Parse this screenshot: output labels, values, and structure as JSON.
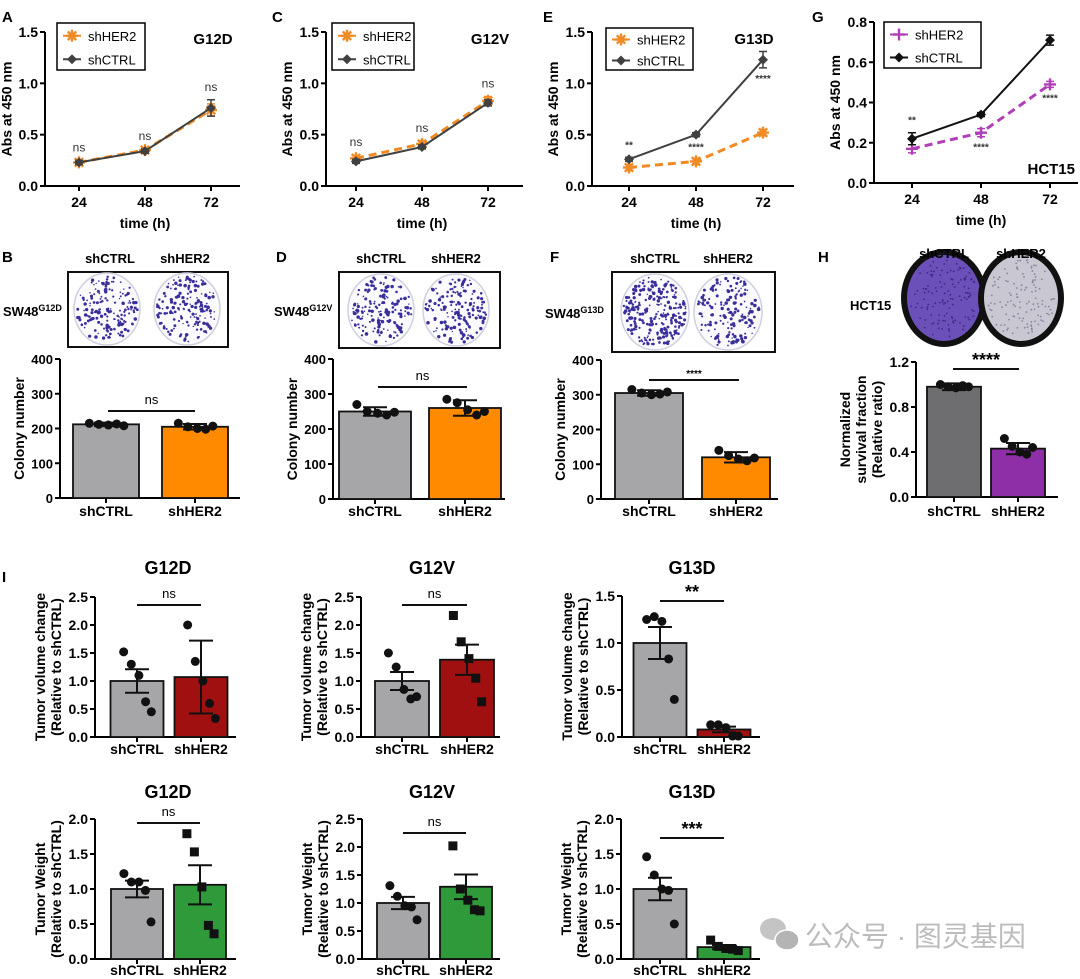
{
  "panel_letters": {
    "A": "A",
    "B": "B",
    "C": "C",
    "D": "D",
    "E": "E",
    "F": "F",
    "G": "G",
    "H": "H",
    "I": "I"
  },
  "chart_data": [
    {
      "id": "A",
      "type": "line",
      "title": "G12D",
      "xlabel": "time (h)",
      "ylabel": "Abs at 450 nm",
      "x": [
        24,
        48,
        72
      ],
      "xtick_labels": [
        "24",
        "48",
        "72"
      ],
      "ylim": [
        0,
        1.5
      ],
      "yticks": [
        0,
        0.5,
        1.0,
        1.5
      ],
      "ytick_labels": [
        "0.0",
        "0.5",
        "1.0",
        "1.5"
      ],
      "series": [
        {
          "name": "shHER2",
          "values": [
            0.23,
            0.35,
            0.74
          ],
          "errors": [
            0.02,
            0.02,
            0.06
          ],
          "color": "#f08a24",
          "dashed": true,
          "marker": "star"
        },
        {
          "name": "shCTRL",
          "values": [
            0.23,
            0.34,
            0.76
          ],
          "errors": [
            0.02,
            0.02,
            0.08
          ],
          "color": "#404040",
          "dashed": false,
          "marker": "diamond"
        }
      ],
      "annotations": [
        "ns",
        "ns",
        "ns"
      ],
      "legend": "top-left"
    },
    {
      "id": "C",
      "type": "line",
      "title": "G12V",
      "xlabel": "time (h)",
      "ylabel": "Abs at 450 nm",
      "x": [
        24,
        48,
        72
      ],
      "xtick_labels": [
        "24",
        "48",
        "72"
      ],
      "ylim": [
        0,
        1.5
      ],
      "yticks": [
        0,
        0.5,
        1.0,
        1.5
      ],
      "ytick_labels": [
        "0.0",
        "0.5",
        "1.0",
        "1.5"
      ],
      "series": [
        {
          "name": "shHER2",
          "values": [
            0.27,
            0.41,
            0.83
          ],
          "errors": [
            0.03,
            0.03,
            0.04
          ],
          "color": "#f08a24",
          "dashed": true,
          "marker": "star"
        },
        {
          "name": "shCTRL",
          "values": [
            0.24,
            0.38,
            0.81
          ],
          "errors": [
            0.02,
            0.02,
            0.03
          ],
          "color": "#404040",
          "dashed": false,
          "marker": "diamond"
        }
      ],
      "annotations": [
        "ns",
        "ns",
        "ns"
      ],
      "legend": "top-left"
    },
    {
      "id": "E",
      "type": "line",
      "title": "G13D",
      "xlabel": "time (h)",
      "ylabel": "Abs at 450 nm",
      "x": [
        24,
        48,
        72
      ],
      "xtick_labels": [
        "24",
        "48",
        "72"
      ],
      "ylim": [
        0,
        1.5
      ],
      "yticks": [
        0,
        0.5,
        1.0,
        1.5
      ],
      "ytick_labels": [
        "0.0",
        "0.5",
        "1.0",
        "1.5"
      ],
      "series": [
        {
          "name": "shHER2",
          "values": [
            0.18,
            0.24,
            0.52
          ],
          "errors": [
            0.03,
            0.03,
            0.03
          ],
          "color": "#f08a24",
          "dashed": true,
          "marker": "star"
        },
        {
          "name": "shCTRL",
          "values": [
            0.26,
            0.5,
            1.23
          ],
          "errors": [
            0.02,
            0.02,
            0.08
          ],
          "color": "#404040",
          "dashed": false,
          "marker": "diamond"
        }
      ],
      "annotations": [
        "**",
        "****",
        "****"
      ],
      "legend": "top-left"
    },
    {
      "id": "G",
      "type": "line",
      "title": "HCT15",
      "xlabel": "time (h)",
      "ylabel": "Abs at 450 nm",
      "x": [
        24,
        48,
        72
      ],
      "xtick_labels": [
        "24",
        "48",
        "72"
      ],
      "ylim": [
        0,
        0.8
      ],
      "yticks": [
        0,
        0.2,
        0.4,
        0.6,
        0.8
      ],
      "ytick_labels": [
        "0.0",
        "0.2",
        "0.4",
        "0.6",
        "0.8"
      ],
      "series": [
        {
          "name": "shHER2",
          "values": [
            0.17,
            0.25,
            0.49
          ],
          "errors": [
            0.02,
            0.02,
            0.015
          ],
          "color": "#b040b8",
          "dashed": true,
          "marker": "plus"
        },
        {
          "name": "shCTRL",
          "values": [
            0.22,
            0.34,
            0.71
          ],
          "errors": [
            0.03,
            0.01,
            0.025
          ],
          "color": "#111111",
          "dashed": false,
          "marker": "diamond"
        }
      ],
      "annotations": [
        "**",
        "****",
        "****"
      ],
      "legend": "top-left"
    },
    {
      "id": "B",
      "type": "bar",
      "title": "",
      "ylabel": [
        "Colony number"
      ],
      "categories": [
        "shCTRL",
        "shHER2"
      ],
      "ylim": [
        0,
        400
      ],
      "yticks": [
        0,
        100,
        200,
        300,
        400
      ],
      "ytick_labels": [
        "0",
        "100",
        "200",
        "300",
        "400"
      ],
      "values": [
        212,
        205
      ],
      "errors": [
        5,
        8
      ],
      "points": [
        [
          215,
          212,
          210,
          213,
          208
        ],
        [
          215,
          205,
          200,
          198,
          207
        ]
      ],
      "colors": [
        "#a6a6a8",
        "#ff8a00"
      ],
      "markers": [
        "circle",
        "circle"
      ],
      "significance": "ns"
    },
    {
      "id": "D",
      "type": "bar",
      "title": "",
      "ylabel": [
        "Colony number"
      ],
      "categories": [
        "shCTRL",
        "shHER2"
      ],
      "ylim": [
        0,
        400
      ],
      "yticks": [
        0,
        100,
        200,
        300,
        400
      ],
      "ytick_labels": [
        "0",
        "100",
        "200",
        "300",
        "400"
      ],
      "values": [
        250,
        260
      ],
      "errors": [
        12,
        22
      ],
      "points": [
        [
          270,
          250,
          245,
          240,
          248
        ],
        [
          285,
          275,
          255,
          240,
          250
        ]
      ],
      "colors": [
        "#a6a6a8",
        "#ff8a00"
      ],
      "markers": [
        "circle",
        "circle"
      ],
      "significance": "ns"
    },
    {
      "id": "F",
      "type": "bar",
      "title": "",
      "ylabel": [
        "Colony number"
      ],
      "categories": [
        "shCTRL",
        "shHER2"
      ],
      "ylim": [
        0,
        400
      ],
      "yticks": [
        0,
        100,
        200,
        300,
        400
      ],
      "ytick_labels": [
        "0",
        "100",
        "200",
        "300",
        "400"
      ],
      "values": [
        305,
        120
      ],
      "errors": [
        8,
        15
      ],
      "points": [
        [
          315,
          305,
          300,
          302,
          308
        ],
        [
          140,
          125,
          115,
          110,
          118
        ]
      ],
      "colors": [
        "#a6a6a8",
        "#ff8a00"
      ],
      "markers": [
        "circle",
        "circle"
      ],
      "significance": "****"
    },
    {
      "id": "H",
      "type": "bar",
      "title": "",
      "ylabel": [
        "Normalized",
        "survival fraction",
        "(Relative ratio)"
      ],
      "categories": [
        "shCTRL",
        "shHER2"
      ],
      "ylim": [
        0,
        1.2
      ],
      "yticks": [
        0,
        0.4,
        0.8,
        1.2
      ],
      "ytick_labels": [
        "0.0",
        "0.4",
        "0.8",
        "1.2"
      ],
      "values": [
        0.98,
        0.43
      ],
      "errors": [
        0.03,
        0.05
      ],
      "points": [
        [
          1.0,
          0.98,
          0.97,
          0.99,
          0.98
        ],
        [
          0.52,
          0.45,
          0.4,
          0.38,
          0.44
        ]
      ],
      "colors": [
        "#6e6e70",
        "#8e2fa8"
      ],
      "markers": [
        "circle",
        "circle"
      ],
      "significance": "****"
    },
    {
      "id": "I-vol-G12D",
      "type": "bar",
      "title": "G12D",
      "ylabel": [
        "Tumor volume change",
        "(Relative to shCTRL)"
      ],
      "categories": [
        "shCTRL",
        "shHER2"
      ],
      "ylim": [
        0,
        2.5
      ],
      "yticks": [
        0,
        0.5,
        1.0,
        1.5,
        2.0,
        2.5
      ],
      "ytick_labels": [
        "0.0",
        "0.5",
        "1.0",
        "1.5",
        "2.0",
        "2.5"
      ],
      "values": [
        1.0,
        1.07
      ],
      "errors": [
        0.21,
        0.65
      ],
      "points": [
        [
          1.52,
          1.3,
          1.1,
          0.63,
          0.45
        ],
        [
          2.0,
          1.35,
          1.0,
          0.6,
          0.33
        ]
      ],
      "colors": [
        "#a6a6a8",
        "#a01010"
      ],
      "markers": [
        "circle",
        "circle"
      ],
      "significance": "ns"
    },
    {
      "id": "I-vol-G12V",
      "type": "bar",
      "title": "G12V",
      "ylabel": [
        "Tumor volume change",
        "(Relative to shCTRL)"
      ],
      "categories": [
        "shCTRL",
        "shHER2"
      ],
      "ylim": [
        0,
        2.5
      ],
      "yticks": [
        0,
        0.5,
        1.0,
        1.5,
        2.0,
        2.5
      ],
      "ytick_labels": [
        "0.0",
        "0.5",
        "1.0",
        "1.5",
        "2.0",
        "2.5"
      ],
      "values": [
        1.0,
        1.38
      ],
      "errors": [
        0.16,
        0.27
      ],
      "points": [
        [
          1.5,
          1.25,
          0.85,
          0.68,
          0.72
        ],
        [
          2.17,
          1.7,
          1.4,
          1.05,
          0.63
        ]
      ],
      "colors": [
        "#a6a6a8",
        "#a01010"
      ],
      "markers": [
        "circle",
        "square"
      ],
      "significance": "ns"
    },
    {
      "id": "I-vol-G13D",
      "type": "bar",
      "title": "G13D",
      "ylabel": [
        "Tumor volume change",
        "(Relative to shCTRL)"
      ],
      "categories": [
        "shCTRL",
        "shHER2"
      ],
      "ylim": [
        0,
        1.5
      ],
      "yticks": [
        0,
        0.5,
        1.0,
        1.5
      ],
      "ytick_labels": [
        "0.0",
        "0.5",
        "1.0",
        "1.5"
      ],
      "values": [
        1.0,
        0.08
      ],
      "errors": [
        0.17,
        0.03
      ],
      "points": [
        [
          1.25,
          1.28,
          1.23,
          0.83,
          0.4
        ],
        [
          0.13,
          0.13,
          0.1,
          0.01,
          0.01
        ]
      ],
      "colors": [
        "#a6a6a8",
        "#a01010"
      ],
      "markers": [
        "circle",
        "circle"
      ],
      "significance": "**"
    },
    {
      "id": "I-wt-G12D",
      "type": "bar",
      "title": "G12D",
      "ylabel": [
        "Tumor Weight",
        "(Relative to shCTRL)"
      ],
      "categories": [
        "shCTRL",
        "shHER2"
      ],
      "ylim": [
        0,
        2.0
      ],
      "yticks": [
        0,
        0.5,
        1.0,
        1.5,
        2.0
      ],
      "ytick_labels": [
        "0.0",
        "0.5",
        "1.0",
        "1.5",
        "2.0"
      ],
      "values": [
        1.0,
        1.06
      ],
      "errors": [
        0.12,
        0.28
      ],
      "points": [
        [
          1.22,
          1.1,
          1.1,
          0.98,
          0.53
        ],
        [
          1.79,
          1.53,
          1.03,
          0.48,
          0.36
        ]
      ],
      "colors": [
        "#a6a6a8",
        "#2e9a3a"
      ],
      "markers": [
        "circle",
        "square"
      ],
      "significance": "ns"
    },
    {
      "id": "I-wt-G12V",
      "type": "bar",
      "title": "G12V",
      "ylabel": [
        "Tumor Weight",
        "(Relative to shCTRL)"
      ],
      "categories": [
        "shCTRL",
        "shHER2"
      ],
      "ylim": [
        0,
        2.5
      ],
      "yticks": [
        0,
        0.5,
        1.0,
        1.5,
        2.0,
        2.5
      ],
      "ytick_labels": [
        "0.0",
        "0.5",
        "1.0",
        "1.5",
        "2.0",
        "2.5"
      ],
      "values": [
        1.0,
        1.29
      ],
      "errors": [
        0.11,
        0.22
      ],
      "points": [
        [
          1.31,
          1.12,
          0.95,
          0.93,
          0.7
        ],
        [
          2.02,
          1.25,
          1.05,
          0.88,
          0.86
        ]
      ],
      "colors": [
        "#a6a6a8",
        "#2e9a3a"
      ],
      "markers": [
        "circle",
        "square"
      ],
      "significance": "ns"
    },
    {
      "id": "I-wt-G13D",
      "type": "bar",
      "title": "G13D",
      "ylabel": [
        "Tumor Weight",
        "(Relative to shCTRL)"
      ],
      "categories": [
        "shCTRL",
        "shHER2"
      ],
      "ylim": [
        0,
        2.0
      ],
      "yticks": [
        0,
        0.5,
        1.0,
        1.5,
        2.0
      ],
      "ytick_labels": [
        "0.0",
        "0.5",
        "1.0",
        "1.5",
        "2.0"
      ],
      "values": [
        1.0,
        0.17
      ],
      "errors": [
        0.16,
        0.03
      ],
      "points": [
        [
          1.46,
          1.2,
          1.0,
          0.98,
          0.5
        ],
        [
          0.27,
          0.18,
          0.15,
          0.14,
          0.12
        ]
      ],
      "colors": [
        "#a6a6a8",
        "#2e9a3a"
      ],
      "markers": [
        "circle",
        "square"
      ],
      "significance": "***"
    }
  ],
  "plates": [
    {
      "panel": "B",
      "cell": "SW48",
      "mutation": "G12D",
      "labels": [
        "shCTRL",
        "shHER2"
      ],
      "stain_color": "#3a2f9a"
    },
    {
      "panel": "D",
      "cell": "SW48",
      "mutation": "G12V",
      "labels": [
        "shCTRL",
        "shHER2"
      ],
      "stain_color": "#3a2f9a"
    },
    {
      "panel": "F",
      "cell": "SW48",
      "mutation": "G13D",
      "labels": [
        "shCTRL",
        "shHER2"
      ],
      "stain_color": "#3a2f9a"
    },
    {
      "panel": "H",
      "cell": "HCT15",
      "mutation": "",
      "labels": [
        "shCTRL",
        "shHER2"
      ],
      "stain_color": "#6a50b8"
    }
  ],
  "watermark": {
    "text": "公众号 · 图灵基因",
    "icon": "wechat-icon"
  }
}
